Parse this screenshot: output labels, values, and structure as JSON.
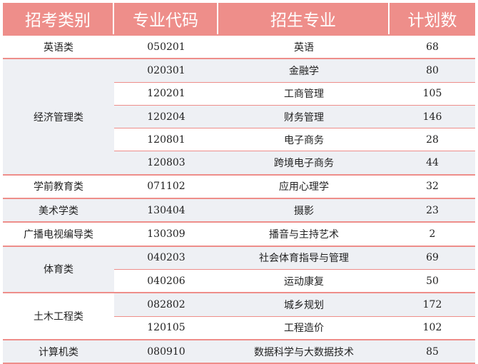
{
  "table": {
    "headers": [
      "招考类别",
      "专业代码",
      "招生专业",
      "计划数"
    ],
    "groups": [
      {
        "category": "英语类",
        "shade": false,
        "rows": [
          {
            "code": "050201",
            "major": "英语",
            "plan": "68",
            "shade": false
          }
        ]
      },
      {
        "category": "经济管理类",
        "shade": true,
        "rows": [
          {
            "code": "020301",
            "major": "金融学",
            "plan": "80",
            "shade": true
          },
          {
            "code": "120201",
            "major": "工商管理",
            "plan": "105",
            "shade": false
          },
          {
            "code": "120204",
            "major": "财务管理",
            "plan": "146",
            "shade": true
          },
          {
            "code": "120801",
            "major": "电子商务",
            "plan": "28",
            "shade": false
          },
          {
            "code": "120803",
            "major": "跨境电子商务",
            "plan": "44",
            "shade": true
          }
        ]
      },
      {
        "category": "学前教育类",
        "shade": false,
        "rows": [
          {
            "code": "071102",
            "major": "应用心理学",
            "plan": "32",
            "shade": false
          }
        ]
      },
      {
        "category": "美术学类",
        "shade": true,
        "rows": [
          {
            "code": "130404",
            "major": "摄影",
            "plan": "23",
            "shade": true
          }
        ]
      },
      {
        "category": "广播电视编导类",
        "shade": false,
        "rows": [
          {
            "code": "130309",
            "major": "播音与主持艺术",
            "plan": "2",
            "shade": false
          }
        ]
      },
      {
        "category": "体育类",
        "shade": true,
        "rows": [
          {
            "code": "040203",
            "major": "社会体育指导与管理",
            "plan": "69",
            "shade": true
          },
          {
            "code": "040206",
            "major": "运动康复",
            "plan": "50",
            "shade": false
          }
        ]
      },
      {
        "category": "土木工程类",
        "shade": false,
        "rows": [
          {
            "code": "082802",
            "major": "城乡规划",
            "plan": "172",
            "shade": true
          },
          {
            "code": "120105",
            "major": "工程造价",
            "plan": "102",
            "shade": false
          }
        ]
      },
      {
        "category": "计算机类",
        "shade": true,
        "rows": [
          {
            "code": "080910",
            "major": "数据科学与大数据技术",
            "plan": "85",
            "shade": true
          }
        ]
      }
    ]
  }
}
